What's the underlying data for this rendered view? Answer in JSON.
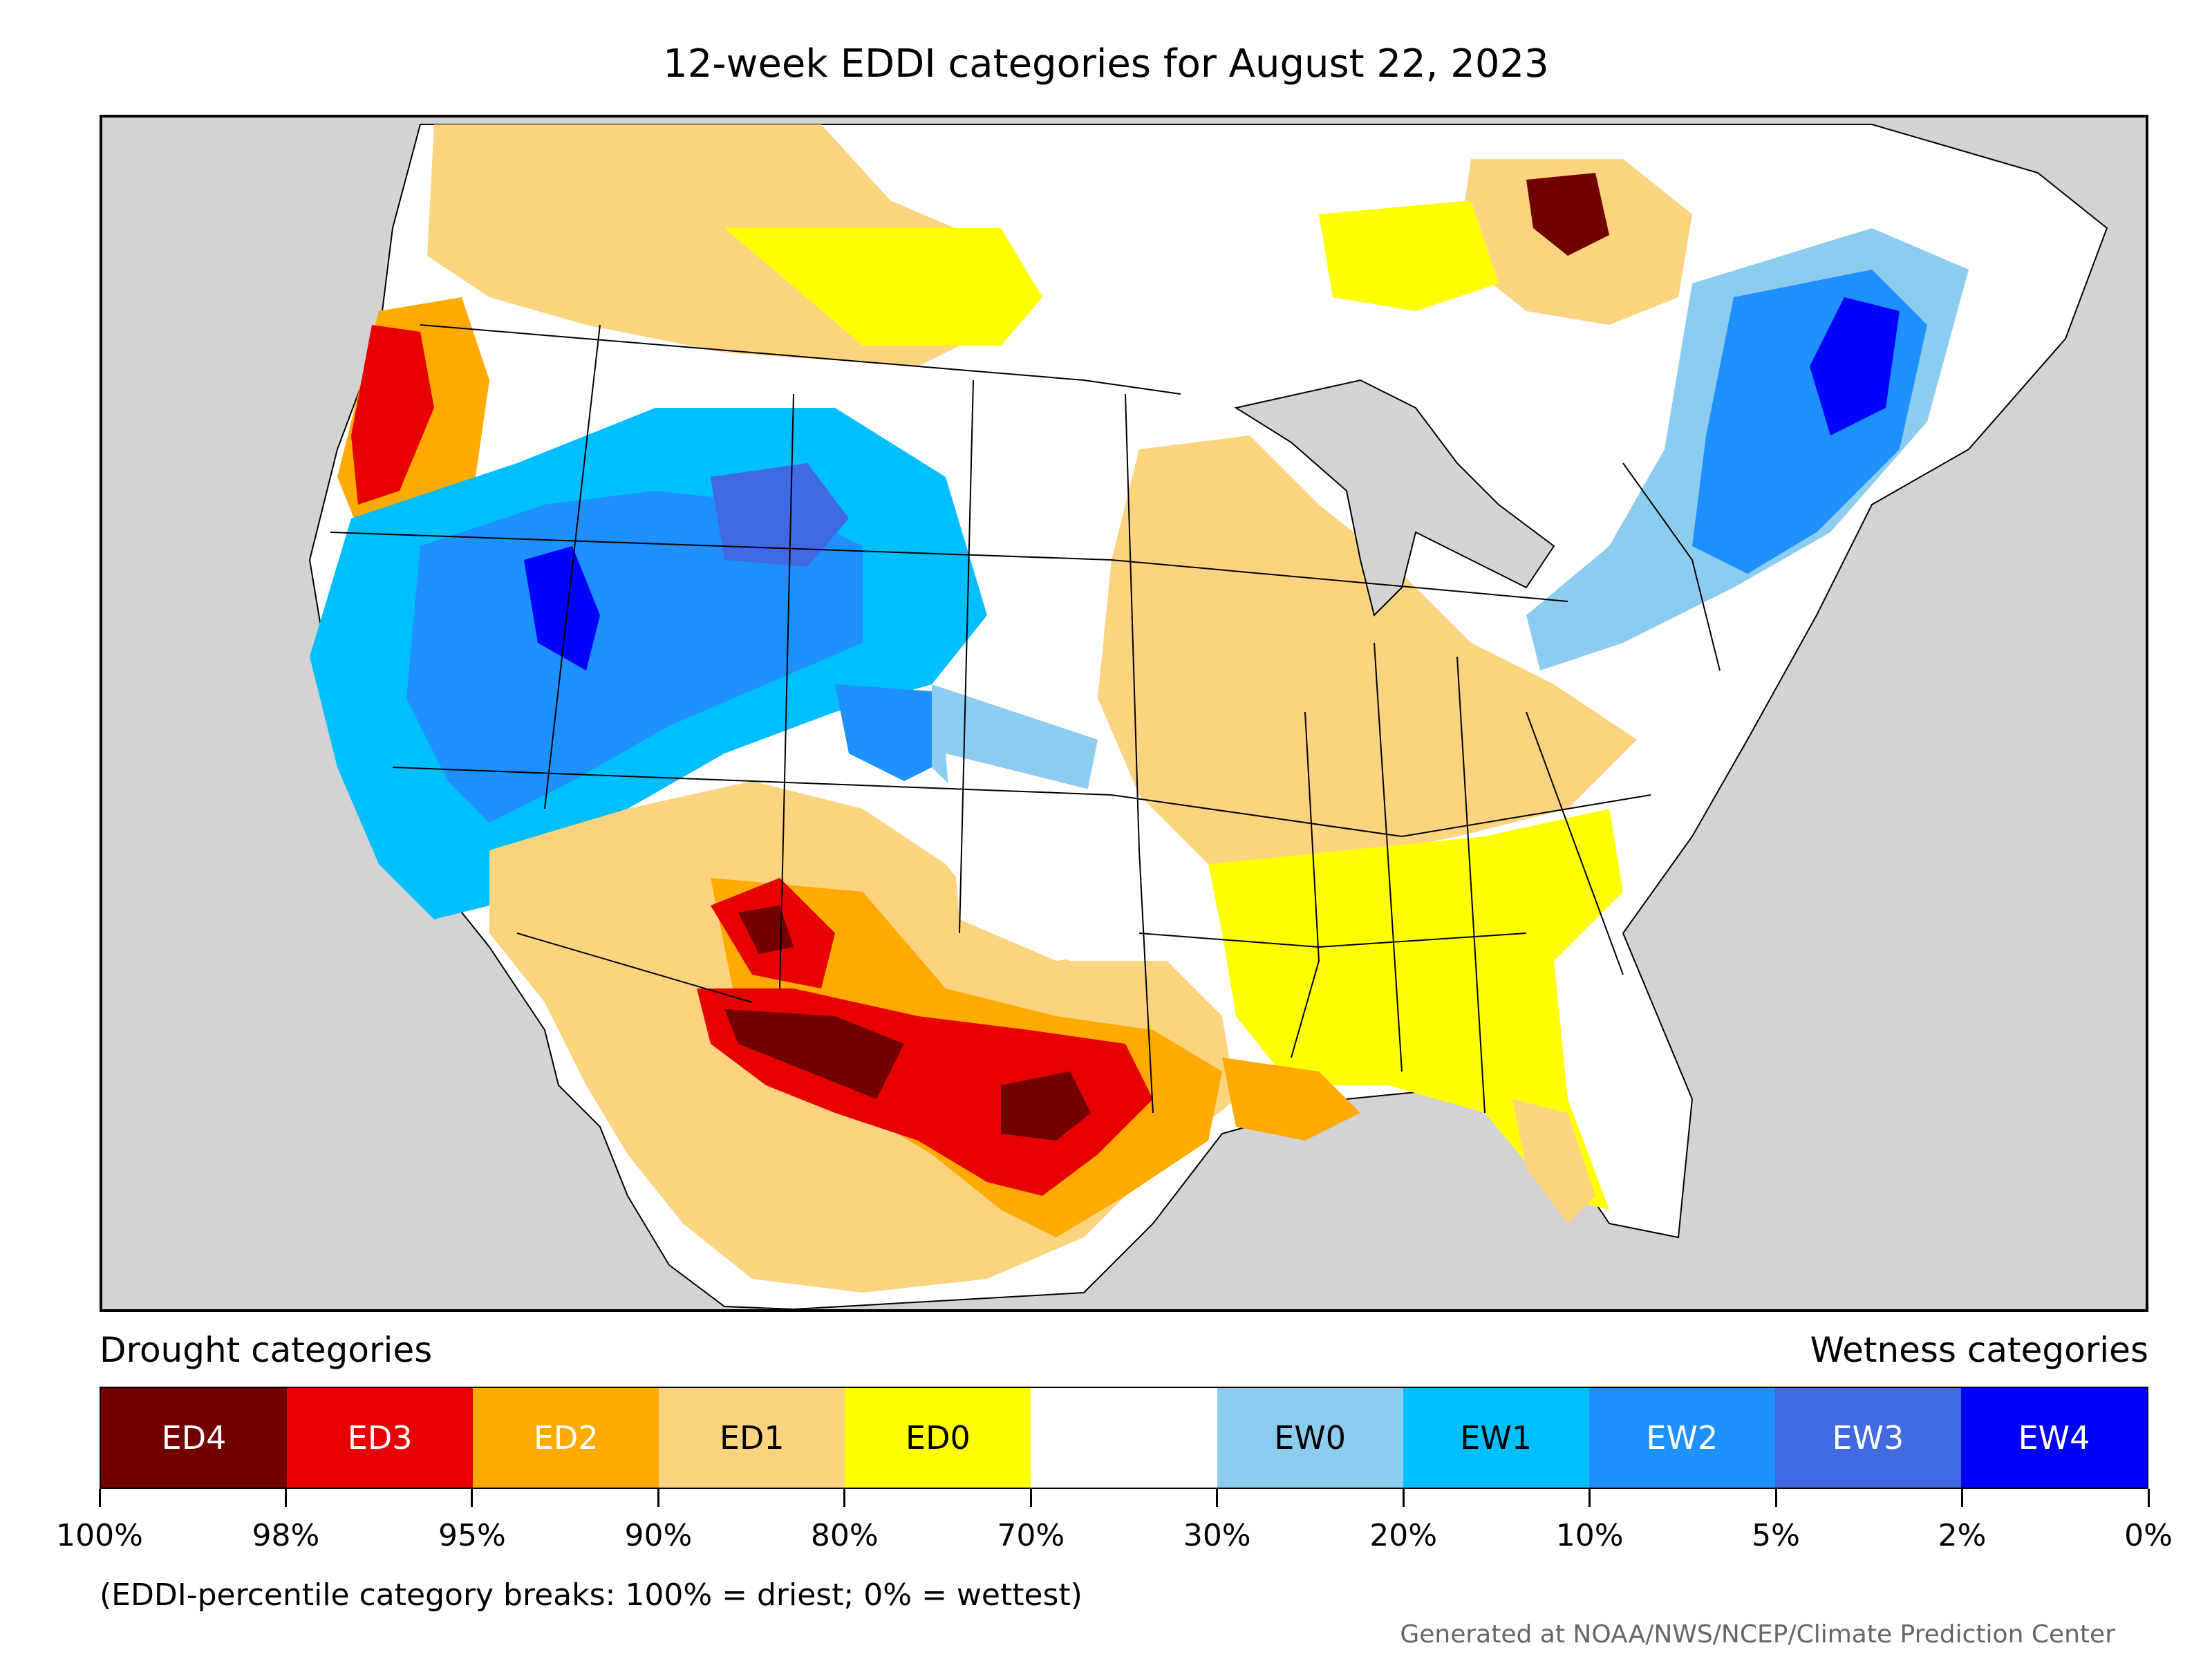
{
  "title": "12-week EDDI categories for August 22, 2023",
  "legend": {
    "drought_title": "Drought categories",
    "wetness_title": "Wetness categories",
    "categories": [
      {
        "label": "ED4",
        "color": "#730000",
        "text_color": "#ffffff"
      },
      {
        "label": "ED3",
        "color": "#e60000",
        "text_color": "#ffffff"
      },
      {
        "label": "ED2",
        "color": "#ffaa00",
        "text_color": "#ffffff"
      },
      {
        "label": "ED1",
        "color": "#fcd37f",
        "text_color": "#000000"
      },
      {
        "label": "ED0",
        "color": "#ffff00",
        "text_color": "#000000"
      },
      {
        "label": "",
        "color": "#ffffff",
        "text_color": "#000000"
      },
      {
        "label": "EW0",
        "color": "#8ccdef",
        "text_color": "#000000"
      },
      {
        "label": "EW1",
        "color": "#00bfff",
        "text_color": "#000000"
      },
      {
        "label": "EW2",
        "color": "#1e90ff",
        "text_color": "#ffffff"
      },
      {
        "label": "EW3",
        "color": "#4169e1",
        "text_color": "#ffffff"
      },
      {
        "label": "EW4",
        "color": "#0000ff",
        "text_color": "#ffffff"
      }
    ],
    "breaks": [
      "100%",
      "98%",
      "95%",
      "90%",
      "80%",
      "70%",
      "30%",
      "20%",
      "10%",
      "5%",
      "2%",
      "0%"
    ]
  },
  "note": "(EDDI-percentile category breaks: 100% = driest; 0% = wettest)",
  "credit": "Generated at NOAA/NWS/NCEP/Climate Prediction Center",
  "map": {
    "background_color": "#d3d3d3",
    "regions": [
      {
        "name": "pacific-northwest",
        "category": "ED2"
      },
      {
        "name": "great-basin",
        "category": "EW2"
      },
      {
        "name": "wyoming",
        "category": "EW2"
      },
      {
        "name": "desert-southwest",
        "category": "ED1"
      },
      {
        "name": "new-mexico",
        "category": "ED3"
      },
      {
        "name": "west-texas",
        "category": "ED4"
      },
      {
        "name": "central-texas",
        "category": "ED4"
      },
      {
        "name": "gulf-coast",
        "category": "ED2"
      },
      {
        "name": "midwest",
        "category": "ED1"
      },
      {
        "name": "southeast",
        "category": "ED0"
      },
      {
        "name": "northeast",
        "category": "EW2"
      },
      {
        "name": "maine",
        "category": "EW4"
      },
      {
        "name": "southern-canada",
        "category": "ED1"
      },
      {
        "name": "quebec-ontario",
        "category": "ED4"
      }
    ]
  }
}
